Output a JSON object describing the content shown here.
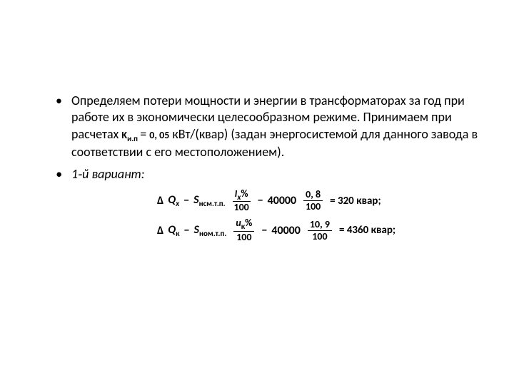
{
  "bullet1": {
    "text_before": "Определяем потери мощности и энергии в трансформаторах за год при работе их в экономически целесообразном режиме. Принимаем при расчетах ",
    "symbol": "K",
    "symbol_sub": "и.п",
    "equals": " = ",
    "value": "0, 05",
    "text_after": " кВт/(квар) (задан энергосистемой для данного завода в соответствии с его местоположением)."
  },
  "bullet2": {
    "text": "1‑й вариант:"
  },
  "eq1": {
    "delta": "Δ",
    "Q": "Q",
    "Q_sub": "x",
    "dash1": "−",
    "S": "S",
    "S_sub": "нсм.т.п.",
    "frac1_num_sym": "I",
    "frac1_num_sub": "x",
    "frac1_num_pct": "%",
    "frac1_den": "100",
    "dash2": "−",
    "const": "40000",
    "frac2_num": "0, 8",
    "frac2_den": "100",
    "result": "= 320 квар;"
  },
  "eq2": {
    "delta": "Δ",
    "Q": "Q",
    "Q_sub": "к",
    "dash1": "−",
    "S": "S",
    "S_sub": "ном.т.п.",
    "frac1_num_sym": "u",
    "frac1_num_sub": "к",
    "frac1_num_pct": "%",
    "frac1_den": "100",
    "dash2": "−",
    "const": "40000",
    "frac2_num": "10, 9",
    "frac2_den": "100",
    "result": "= 4360 квар;"
  }
}
